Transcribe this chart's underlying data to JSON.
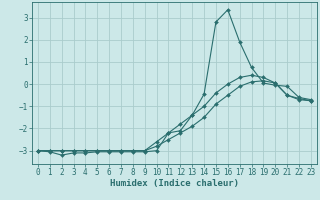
{
  "xlabel": "Humidex (Indice chaleur)",
  "ylabel": "",
  "background_color": "#cce8e8",
  "grid_color": "#aacccc",
  "line_color": "#2a6e6e",
  "xlim": [
    -0.5,
    23.5
  ],
  "ylim": [
    -3.6,
    3.7
  ],
  "yticks": [
    -3,
    -2,
    -1,
    0,
    1,
    2,
    3
  ],
  "xticks": [
    0,
    1,
    2,
    3,
    4,
    5,
    6,
    7,
    8,
    9,
    10,
    11,
    12,
    13,
    14,
    15,
    16,
    17,
    18,
    19,
    20,
    21,
    22,
    23
  ],
  "series": [
    {
      "x": [
        0,
        1,
        2,
        3,
        4,
        5,
        6,
        7,
        8,
        9,
        10,
        11,
        12,
        13,
        14,
        15,
        16,
        17,
        18,
        19,
        20,
        21,
        22,
        23
      ],
      "y": [
        -3.0,
        -3.05,
        -3.2,
        -3.1,
        -3.1,
        -3.05,
        -3.05,
        -3.05,
        -3.05,
        -3.05,
        -3.0,
        -2.2,
        -2.1,
        -1.4,
        -0.45,
        2.8,
        3.35,
        1.9,
        0.75,
        0.05,
        -0.05,
        -0.1,
        -0.6,
        -0.7
      ]
    },
    {
      "x": [
        0,
        1,
        2,
        3,
        4,
        5,
        6,
        7,
        8,
        9,
        10,
        11,
        12,
        13,
        14,
        15,
        16,
        17,
        18,
        19,
        20,
        21,
        22,
        23
      ],
      "y": [
        -3.0,
        -3.0,
        -3.0,
        -3.0,
        -3.0,
        -3.0,
        -3.0,
        -3.0,
        -3.0,
        -3.0,
        -2.8,
        -2.5,
        -2.2,
        -1.9,
        -1.5,
        -0.9,
        -0.5,
        -0.1,
        0.1,
        0.15,
        0.05,
        -0.5,
        -0.7,
        -0.75
      ]
    },
    {
      "x": [
        0,
        1,
        2,
        3,
        4,
        5,
        6,
        7,
        8,
        9,
        10,
        11,
        12,
        13,
        14,
        15,
        16,
        17,
        18,
        19,
        20,
        21,
        22,
        23
      ],
      "y": [
        -3.0,
        -3.0,
        -3.0,
        -3.0,
        -3.0,
        -3.0,
        -3.0,
        -3.0,
        -3.0,
        -3.0,
        -2.6,
        -2.2,
        -1.8,
        -1.4,
        -1.0,
        -0.4,
        0.0,
        0.3,
        0.4,
        0.3,
        0.05,
        -0.5,
        -0.65,
        -0.75
      ]
    }
  ]
}
